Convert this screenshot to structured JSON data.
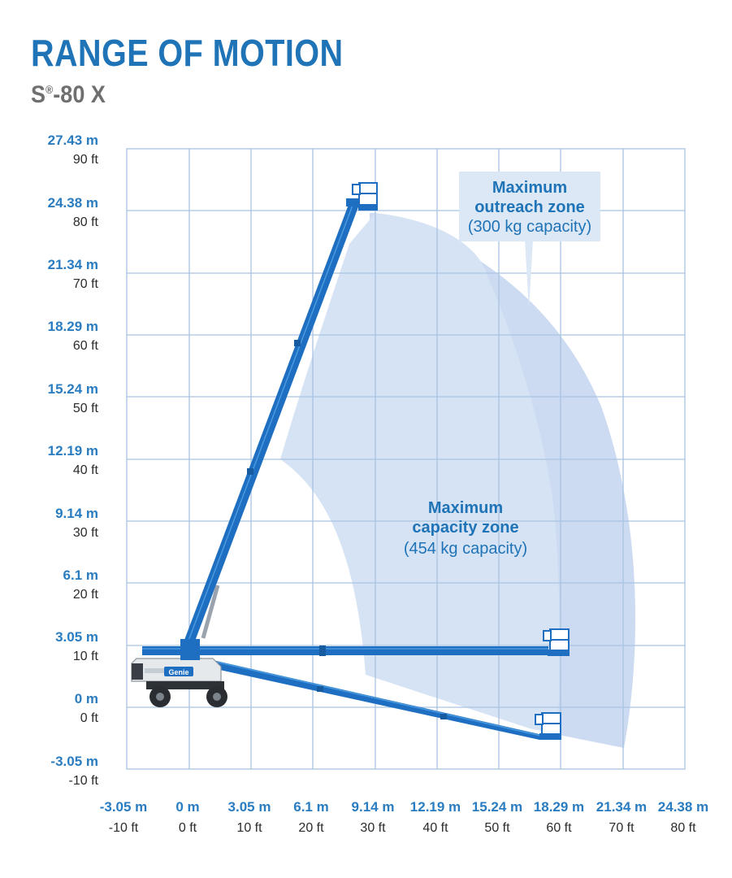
{
  "title": "RANGE OF MOTION",
  "model": {
    "prefix": "S",
    "mark": "®",
    "suffix": "-80 X"
  },
  "y_axis": [
    {
      "m": "27.43 m",
      "ft": "90 ft"
    },
    {
      "m": "24.38 m",
      "ft": "80 ft"
    },
    {
      "m": "21.34 m",
      "ft": "70 ft"
    },
    {
      "m": "18.29 m",
      "ft": "60 ft"
    },
    {
      "m": "15.24 m",
      "ft": "50 ft"
    },
    {
      "m": "12.19 m",
      "ft": "40 ft"
    },
    {
      "m": "9.14 m",
      "ft": "30 ft"
    },
    {
      "m": "6.1 m",
      "ft": "20 ft"
    },
    {
      "m": "3.05 m",
      "ft": "10 ft"
    },
    {
      "m": "0 m",
      "ft": "0 ft"
    },
    {
      "m": "-3.05 m",
      "ft": "-10 ft"
    }
  ],
  "x_axis": [
    {
      "m": "-3.05 m",
      "ft": "-10 ft"
    },
    {
      "m": "0 m",
      "ft": "0 ft"
    },
    {
      "m": "3.05 m",
      "ft": "10 ft"
    },
    {
      "m": "6.1 m",
      "ft": "20 ft"
    },
    {
      "m": "9.14 m",
      "ft": "30 ft"
    },
    {
      "m": "12.19 m",
      "ft": "40 ft"
    },
    {
      "m": "15.24 m",
      "ft": "50 ft"
    },
    {
      "m": "18.29 m",
      "ft": "60 ft"
    },
    {
      "m": "21.34 m",
      "ft": "70 ft"
    },
    {
      "m": "24.38 m",
      "ft": "80 ft"
    }
  ],
  "zones": {
    "outreach": {
      "line1": "Maximum",
      "line2": "outreach zone",
      "capacity": "(300 kg capacity)"
    },
    "capacity": {
      "line1": "Maximum",
      "line2": "capacity zone",
      "capacity": "(454 kg capacity)"
    }
  },
  "machine_logo": "Genie",
  "colors": {
    "title": "#1f73b7",
    "subtitle": "#6f6f6f",
    "metric_label": "#2a7cc0",
    "grid": "#a9c4e2",
    "boom": "#1e6fc1",
    "boom_highlight": "#4a9ae0",
    "outreach_zone": "#c3d5ee",
    "capacity_zone": "#d6e3f4",
    "callout": "#dde8f6"
  }
}
